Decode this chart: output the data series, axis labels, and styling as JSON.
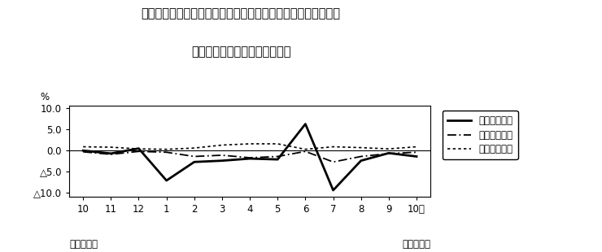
{
  "title_line1": "第４図　賃金、労働時間、常用雇用指数　対前年同月比の推移",
  "title_line2": "（規模５人以上　調査産業計）",
  "x_labels": [
    "10",
    "11",
    "12",
    "1",
    "2",
    "3",
    "4",
    "5",
    "6",
    "7",
    "8",
    "9",
    "10月"
  ],
  "x_bottom_left": "平成２３年",
  "x_bottom_right": "平成２４年",
  "ylabel": "%",
  "ylim": [
    -11.0,
    10.5
  ],
  "yticks": [
    10.0,
    5.0,
    0.0,
    -5.0,
    -10.0
  ],
  "line1_label": "現金給与総額",
  "line2_label": "総実労働時間",
  "line3_label": "常用雇用指数",
  "line1_values": [
    -0.1,
    -0.8,
    0.4,
    -7.2,
    -2.8,
    -2.5,
    -2.0,
    -2.2,
    6.2,
    -9.5,
    -2.5,
    -0.7,
    -1.5
  ],
  "line2_values": [
    -0.4,
    -1.0,
    -0.3,
    -0.5,
    -1.5,
    -1.2,
    -1.8,
    -1.5,
    -0.3,
    -2.8,
    -1.5,
    -0.8,
    -0.5
  ],
  "line3_values": [
    0.8,
    0.7,
    0.3,
    0.2,
    0.5,
    1.2,
    1.5,
    1.5,
    0.2,
    0.8,
    0.6,
    0.3,
    0.8
  ],
  "background_color": "#ffffff",
  "font_size_title": 10.5,
  "font_size_tick": 8.5,
  "font_size_legend": 8.5,
  "font_size_ylabel": 8.5
}
